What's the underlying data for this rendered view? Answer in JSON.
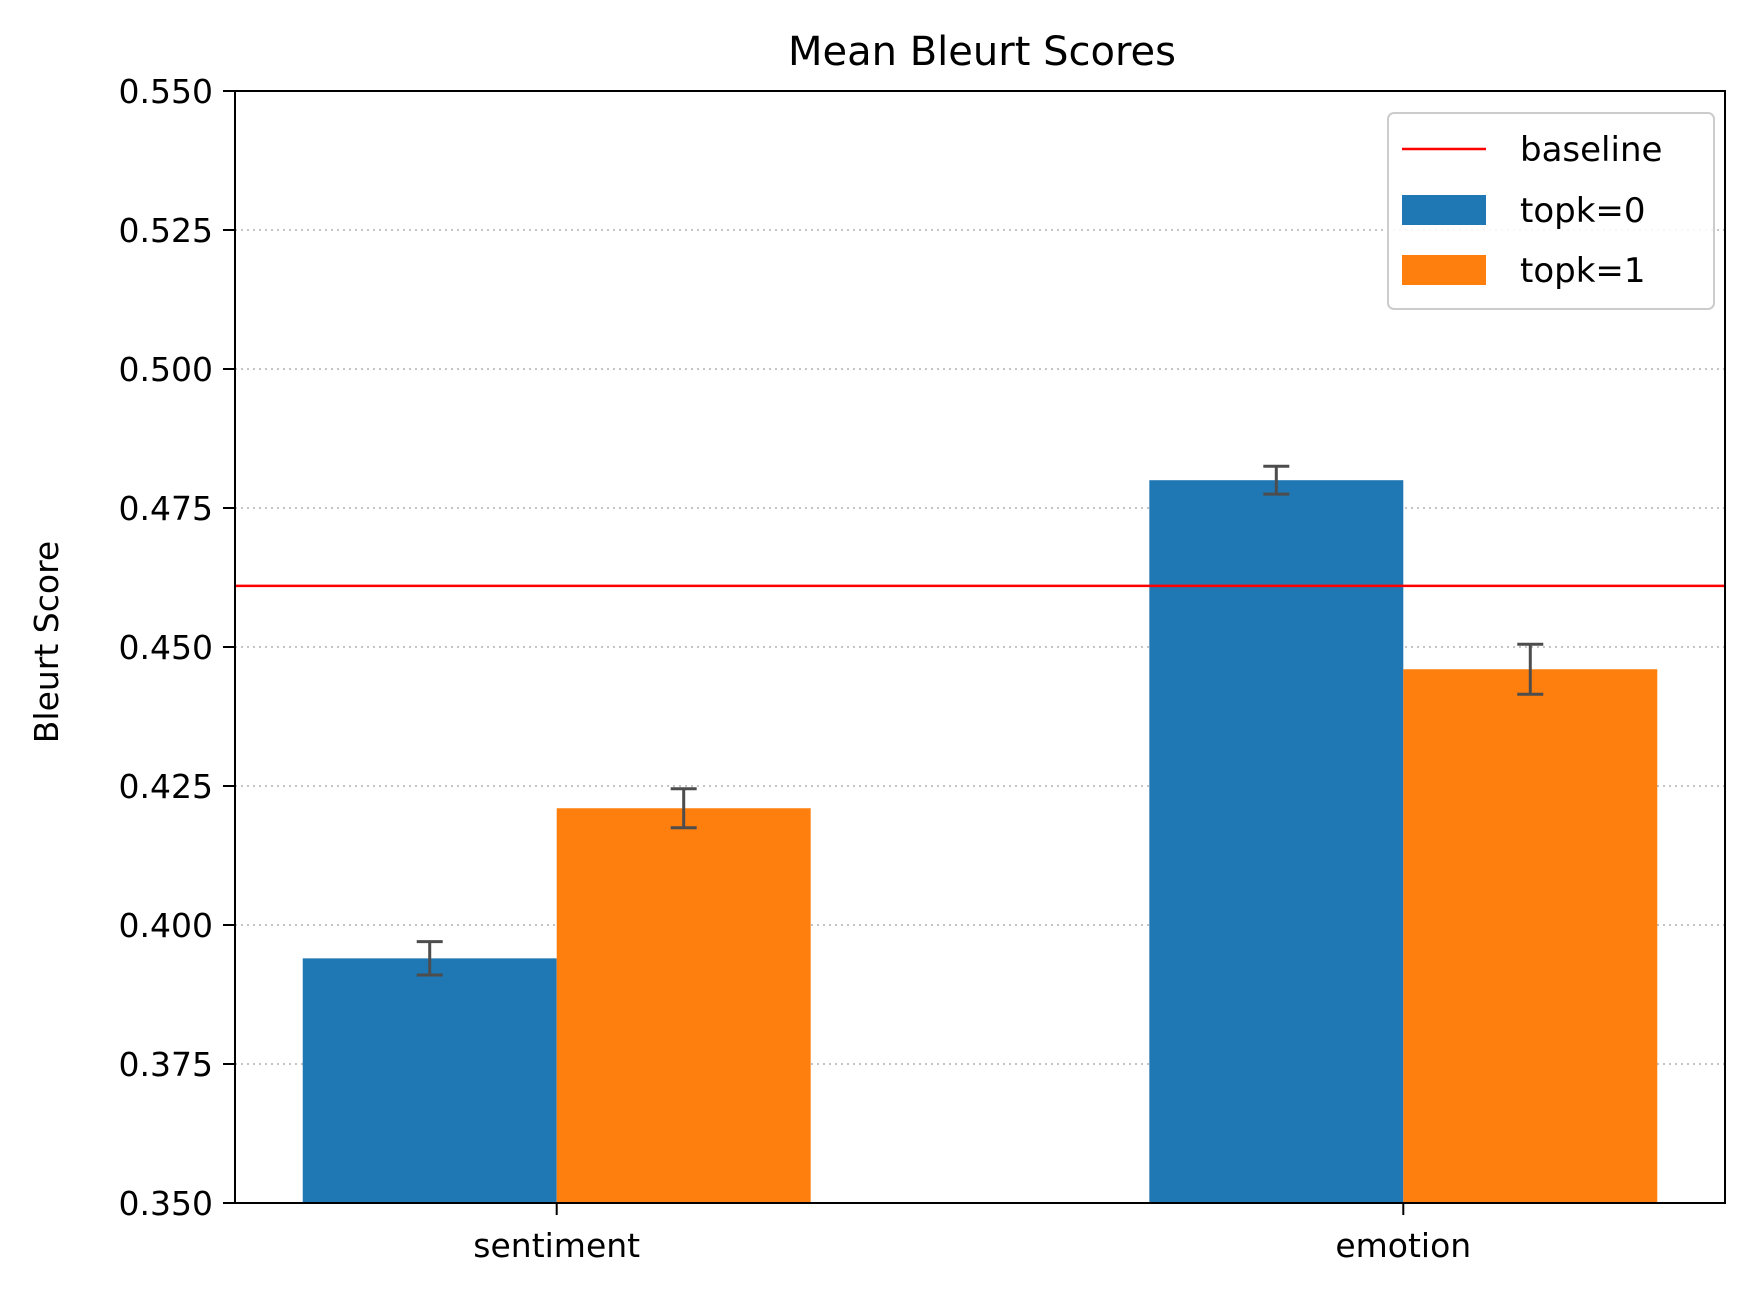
{
  "chart_data": {
    "type": "bar",
    "title": "Mean Bleurt Scores",
    "xlabel": "",
    "ylabel": "Bleurt Score",
    "ylim": [
      0.35,
      0.55
    ],
    "yticks": [
      "0.350",
      "0.375",
      "0.400",
      "0.425",
      "0.450",
      "0.475",
      "0.500",
      "0.525",
      "0.550"
    ],
    "categories": [
      "sentiment",
      "emotion"
    ],
    "series": [
      {
        "name": "topk=0",
        "color": "#1f77b4",
        "values": [
          0.394,
          0.48
        ],
        "errors": [
          0.003,
          0.0025
        ]
      },
      {
        "name": "topk=1",
        "color": "#ff7f0e",
        "values": [
          0.421,
          0.446
        ],
        "errors": [
          0.0035,
          0.0045
        ]
      }
    ],
    "baseline": {
      "name": "baseline",
      "value": 0.461,
      "color": "#ff0000"
    },
    "grid": "horizontal dotted",
    "legend": {
      "placement": "top-right",
      "entries": [
        "baseline",
        "topk=0",
        "topk=1"
      ]
    }
  }
}
